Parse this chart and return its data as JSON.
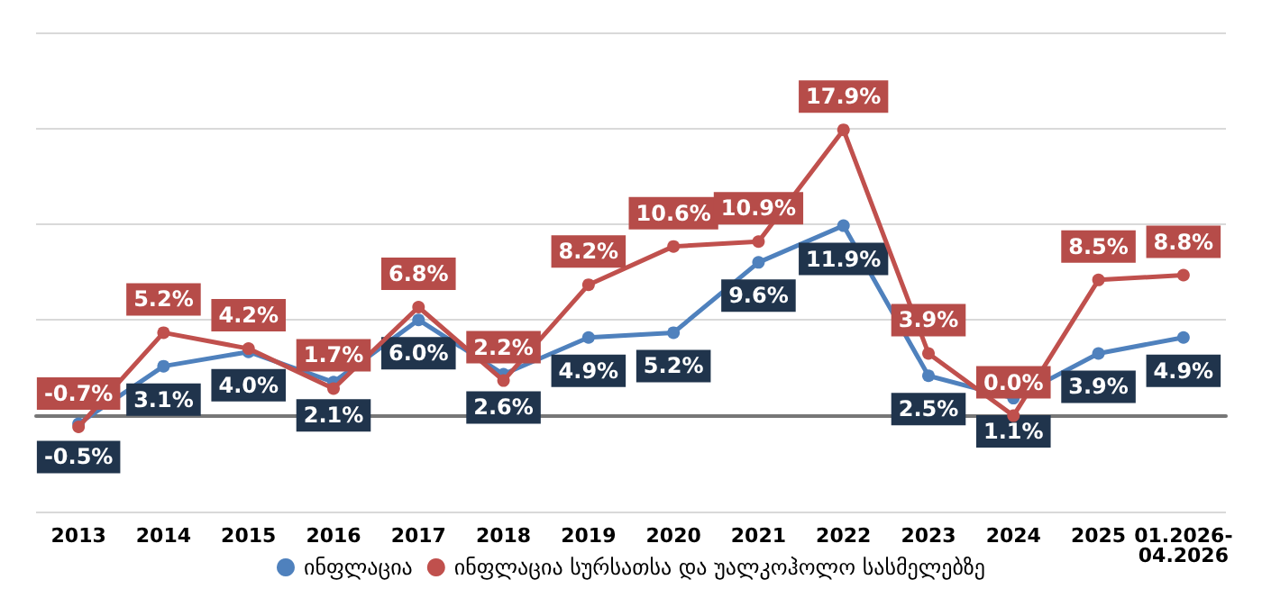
{
  "chart_data": {
    "type": "line",
    "categories": [
      "2013",
      "2014",
      "2015",
      "2016",
      "2017",
      "2018",
      "2019",
      "2020",
      "2021",
      "2022",
      "2023",
      "2024",
      "2025",
      "01.2026-04.2026"
    ],
    "series": [
      {
        "name": "ინფლაცია",
        "color": "#4f81bd",
        "values": [
          -0.5,
          3.1,
          4.0,
          2.1,
          6.0,
          2.6,
          4.9,
          5.2,
          9.6,
          11.9,
          2.5,
          1.1,
          3.9,
          4.9
        ],
        "value_labels": [
          "-0.5%",
          "3.1%",
          "4.0%",
          "2.1%",
          "6.0%",
          "2.6%",
          "4.9%",
          "5.2%",
          "9.6%",
          "11.9%",
          "2.5%",
          "1.1%",
          "3.9%",
          "4.9%"
        ]
      },
      {
        "name": "ინფლაცია სურსათსა და უალკოჰოლო სასმელებზე",
        "color": "#c0504d",
        "values": [
          -0.7,
          5.2,
          4.2,
          1.7,
          6.8,
          2.2,
          8.2,
          10.6,
          10.9,
          17.9,
          3.9,
          0.0,
          8.5,
          8.8
        ],
        "value_labels": [
          "-0.7%",
          "5.2%",
          "4.2%",
          "1.7%",
          "6.8%",
          "2.2%",
          "8.2%",
          "10.6%",
          "10.9%",
          "17.9%",
          "3.9%",
          "0.0%",
          "8.5%",
          "8.8%"
        ]
      }
    ],
    "ylim": [
      -6,
      24
    ],
    "yticks": [
      {
        "value": -6,
        "label": null
      },
      {
        "value": 0,
        "label": null
      },
      {
        "value": 6,
        "label": null
      },
      {
        "value": 12,
        "label": null
      },
      {
        "value": 18,
        "label": null
      },
      {
        "value": 24,
        "label": null
      }
    ],
    "grid": "y",
    "legend": "bottom",
    "tick_labels": "x",
    "marker": "circle",
    "line_style": "solid"
  }
}
